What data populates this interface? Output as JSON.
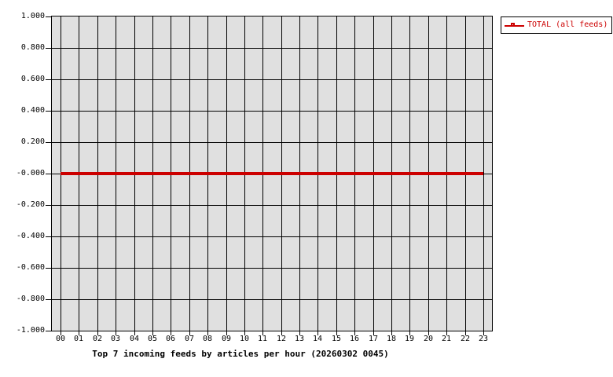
{
  "chart_data": {
    "type": "line",
    "title": "Top 7 incoming feeds by articles per hour (20260302 0045)",
    "xlabel": "",
    "ylabel": "",
    "x_ticks": [
      "00",
      "01",
      "02",
      "03",
      "04",
      "05",
      "06",
      "07",
      "08",
      "09",
      "10",
      "11",
      "12",
      "13",
      "14",
      "15",
      "16",
      "17",
      "18",
      "19",
      "20",
      "21",
      "22",
      "23"
    ],
    "y_ticks": [
      "1.000",
      "0.800",
      "0.600",
      "0.400",
      "0.200",
      "-0.000",
      "-0.200",
      "-0.400",
      "-0.600",
      "-0.800",
      "-1.000"
    ],
    "ylim": [
      -1.0,
      1.0
    ],
    "grid": true,
    "plot_background": "#e0e0e0",
    "grid_color": "#000000",
    "axis_color": "#000000",
    "legend_position": "top-right",
    "series": [
      {
        "name": "TOTAL (all feeds)",
        "color": "#cc0000",
        "marker": "square",
        "line_width": 4,
        "values": [
          0,
          0,
          0,
          0,
          0,
          0,
          0,
          0,
          0,
          0,
          0,
          0,
          0,
          0,
          0,
          0,
          0,
          0,
          0,
          0,
          0,
          0,
          0,
          0
        ]
      }
    ]
  }
}
